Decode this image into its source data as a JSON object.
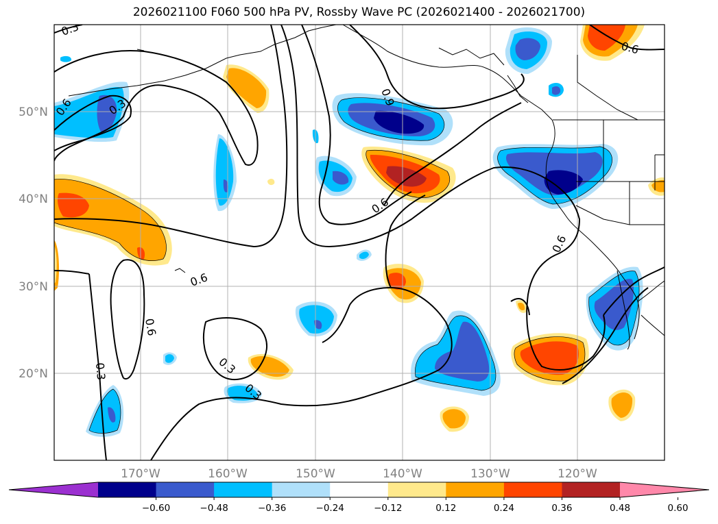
{
  "title": "2026021100 F060 500 hPa PV, Rossby Wave PC (2026021400 - 2026021700)",
  "longitude_labels": [
    "170°W",
    "160°W",
    "150°W",
    "140°W",
    "130°W",
    "120°W"
  ],
  "latitude_labels": [
    "50°N",
    "40°N",
    "30°N",
    "20°N"
  ],
  "colorbar": {
    "tick_labels": [
      "−0.60",
      "−0.48",
      "−0.36",
      "−0.24",
      "−0.12",
      "0.12",
      "0.24",
      "0.36",
      "0.48",
      "0.60"
    ],
    "colors": [
      "#9b30d0",
      "#00008b",
      "#3a5acd",
      "#00bfff",
      "#b0e0fa",
      "#ffffff",
      "#ffe98c",
      "#ffa500",
      "#ff4500",
      "#b22222",
      "#ff88aa"
    ]
  },
  "contour_labels": [
    "0.3",
    "0.6",
    "0.3",
    "0.9",
    "0.6",
    "0.6",
    "0.6",
    "0.3",
    "0.3",
    "0.6",
    "0.6",
    "0.3"
  ],
  "map_colors": {
    "land_outline": "#000000",
    "grid": "#b0b0b0",
    "contour": "#000000"
  }
}
